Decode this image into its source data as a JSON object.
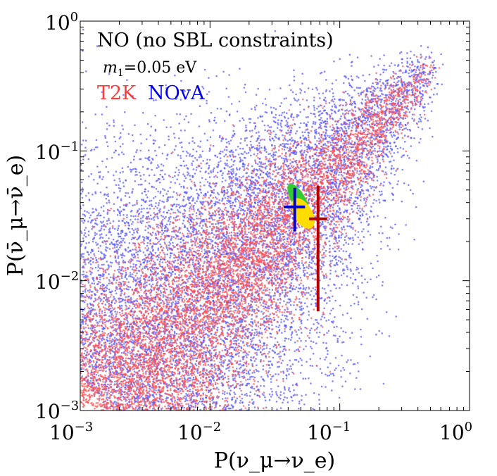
{
  "chart_data": {
    "type": "scatter",
    "xscale": "log",
    "yscale": "log",
    "xlim": [
      0.001,
      1
    ],
    "ylim": [
      0.001,
      1
    ],
    "xlabel": "P(ν_μ→ν_e)",
    "ylabel": "P(ν̄_μ→ν̄_e)",
    "xticks": [
      {
        "base": "10",
        "exp": "−3"
      },
      {
        "base": "10",
        "exp": "−2"
      },
      {
        "base": "10",
        "exp": "−1"
      },
      {
        "base": "10",
        "exp": "0"
      }
    ],
    "yticks": [
      {
        "base": "10",
        "exp": "−3"
      },
      {
        "base": "10",
        "exp": "−2"
      },
      {
        "base": "10",
        "exp": "−1"
      },
      {
        "base": "10",
        "exp": "0"
      }
    ],
    "annotations": {
      "title": "NO (no SBL constraints)",
      "mass_symbol": "m",
      "mass_index": "1",
      "mass_value": "=0.05 eV"
    },
    "legend": [
      {
        "name": "T2K",
        "color": "#ff3a3a"
      },
      {
        "name": "NOvA",
        "color": "#0000ee"
      }
    ],
    "series": [
      {
        "name": "NOvA",
        "color": "#5555ff",
        "kind": "scatter-cloud",
        "region": {
          "apex": [
            0.6,
            0.55
          ],
          "x_range": [
            0.0013,
            0.6
          ],
          "y_range": [
            0.0012,
            0.55
          ],
          "points": 9000
        }
      },
      {
        "name": "T2K",
        "color": "#ff5050",
        "kind": "scatter-cloud",
        "region": {
          "apex": [
            0.55,
            0.5
          ],
          "x_range": [
            0.0012,
            0.55
          ],
          "y_range": [
            0.001,
            0.5
          ],
          "points": 7000
        }
      }
    ],
    "contours": [
      {
        "name": "green",
        "color": "#33cc33",
        "center": [
          0.048,
          0.042
        ]
      },
      {
        "name": "yellow",
        "color": "#ffdd00",
        "center": [
          0.052,
          0.033
        ]
      }
    ],
    "data_points": [
      {
        "name": "NOvA measurement",
        "color": "#0000cc",
        "x": 0.045,
        "x_err": [
          0.037,
          0.054
        ],
        "y": 0.037,
        "y_err": [
          0.024,
          0.052
        ]
      },
      {
        "name": "T2K measurement",
        "color": "#b00000",
        "x": 0.068,
        "x_err": [
          0.058,
          0.08
        ],
        "y": 0.03,
        "y_err": [
          0.0058,
          0.054
        ]
      }
    ]
  }
}
